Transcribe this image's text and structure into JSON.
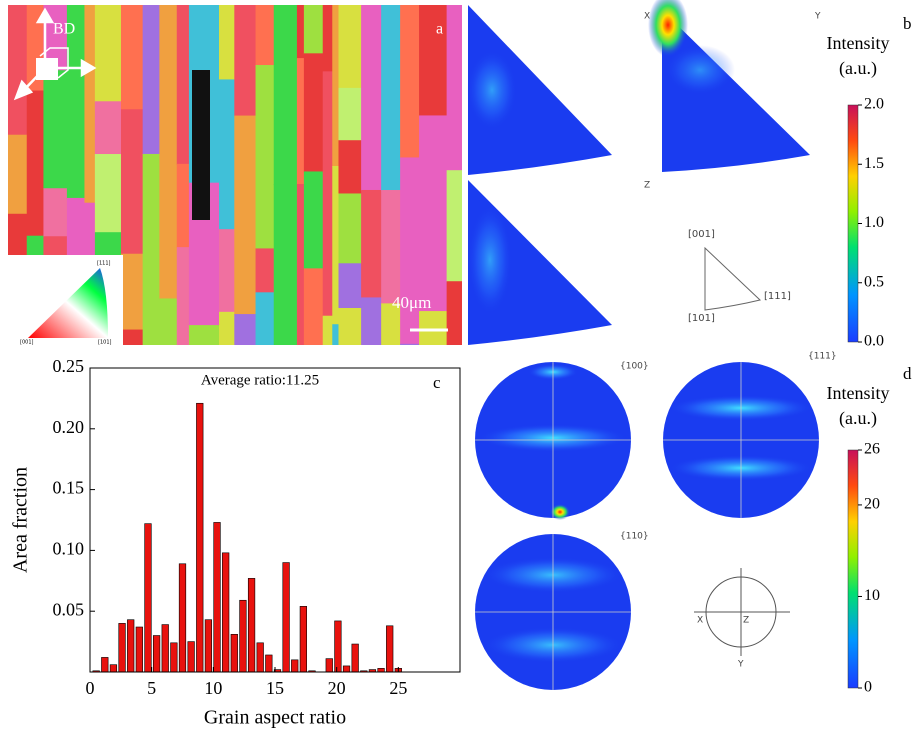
{
  "chart_data": [
    {
      "type": "histogram",
      "panel_label": "c",
      "annotation": "Average ratio:11.25",
      "x_label": "Grain aspect ratio",
      "y_label": "Area fraction",
      "color": "#e8120e",
      "bins": [
        0.15,
        0.85,
        1.55,
        2.25,
        2.95,
        3.65,
        4.35,
        5.05,
        5.75,
        6.45,
        7.15,
        7.85,
        8.55,
        9.25,
        9.95,
        10.65,
        11.35,
        12.05,
        12.75,
        13.45,
        14.15,
        14.85,
        15.55,
        16.25,
        16.95,
        17.65,
        18.35,
        19.05,
        19.75,
        20.45,
        21.15,
        21.85,
        22.55,
        23.25,
        23.95,
        24.65,
        25.35
      ],
      "values": [
        0.001,
        0.012,
        0.006,
        0.04,
        0.043,
        0.037,
        0.122,
        0.03,
        0.039,
        0.024,
        0.089,
        0.025,
        0.221,
        0.043,
        0.123,
        0.098,
        0.031,
        0.059,
        0.077,
        0.024,
        0.014,
        0.002,
        0.09,
        0.01,
        0.054,
        0.001,
        0.0,
        0.011,
        0.042,
        0.005,
        0.023,
        0.001,
        0.002,
        0.003,
        0.038,
        0.003
      ],
      "xlim": [
        0,
        30
      ],
      "xticks": [
        0,
        5,
        10,
        15,
        20,
        25
      ],
      "ylim": [
        0,
        0.25
      ],
      "yticks": [
        0.05,
        {
          "value": 0.1,
          "label": "0.10"
        },
        0.15,
        {
          "value": 0.2,
          "label": "0.20"
        },
        0.25
      ]
    },
    {
      "type": "colorbar",
      "panel_label": "b",
      "title": "Intensity",
      "subtitle": "(a.u.)",
      "ylim": [
        0,
        2
      ],
      "yticks": [
        {
          "value": 0,
          "label": "0.0"
        },
        0.5,
        {
          "value": 1,
          "label": "1.0"
        },
        1.5,
        {
          "value": 2,
          "label": "2.0"
        }
      ]
    },
    {
      "type": "colorbar",
      "panel_label": "d",
      "title": "Intensity",
      "subtitle": "(a.u.)",
      "ylim": [
        0,
        26
      ],
      "yticks": [
        0,
        10,
        20,
        26
      ]
    }
  ],
  "panels": {
    "a": {
      "label": "a",
      "direction": "BD",
      "scale_bar": "40μm",
      "key_labels": [
        "[111]",
        "[001]",
        "[101]"
      ]
    },
    "b": {
      "axes": [
        "X",
        "Y",
        "Z"
      ],
      "triangle_labels": [
        "[001]",
        "[111]",
        "[101]"
      ]
    },
    "d": {
      "pole_figures": [
        "{100}",
        "{111}",
        "{110}"
      ],
      "axes": [
        "X",
        "Z",
        "Y"
      ]
    }
  }
}
